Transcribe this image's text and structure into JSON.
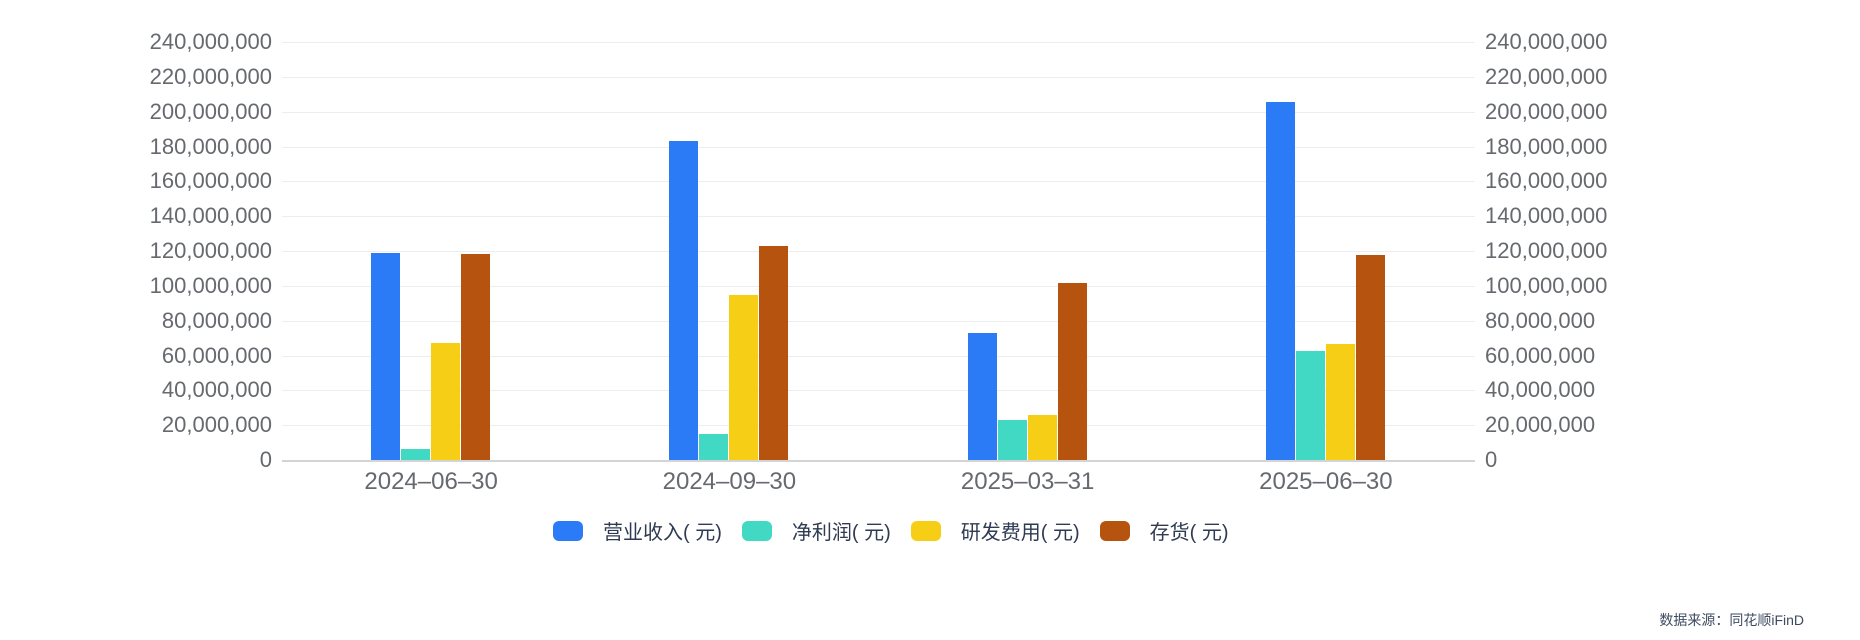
{
  "chart_data": {
    "type": "bar",
    "title": "",
    "categories": [
      "2024–06–30",
      "2024–09–30",
      "2025–03–31",
      "2025–06–30"
    ],
    "series": [
      {
        "name": "营业收入( 元)",
        "color": "#2B7BF6",
        "values": [
          119000000,
          183000000,
          73000000,
          205500000
        ]
      },
      {
        "name": "净利润( 元)",
        "color": "#41D9C3",
        "values": [
          6500000,
          15000000,
          23000000,
          62500000
        ]
      },
      {
        "name": "研发费用( 元)",
        "color": "#F6CE16",
        "values": [
          67000000,
          95000000,
          26000000,
          66500000
        ]
      },
      {
        "name": "存货( 元)",
        "color": "#B5530F",
        "values": [
          118500000,
          123000000,
          101500000,
          117500000
        ]
      }
    ],
    "ylim": [
      0,
      240000000
    ],
    "ytick_step": 20000000,
    "ytick_labels": [
      "240,000,000",
      "220,000,000",
      "200,000,000",
      "180,000,000",
      "160,000,000",
      "140,000,000",
      "120,000,000",
      "100,000,000",
      "80,000,000",
      "60,000,000",
      "40,000,000",
      "20,000,000",
      "0"
    ],
    "grid": true,
    "legend_position": "bottom",
    "y_axis_sides": "left-and-right",
    "xlabel": "",
    "ylabel": ""
  },
  "source_note": "数据来源：同花顺iFinD",
  "colors": {
    "background": "#ffffff",
    "grid": "#ededed",
    "axis_line": "#d4d4d4",
    "axis_text": "#66696e",
    "legend_text": "#2f3b52",
    "source_text": "#3e4a61"
  }
}
